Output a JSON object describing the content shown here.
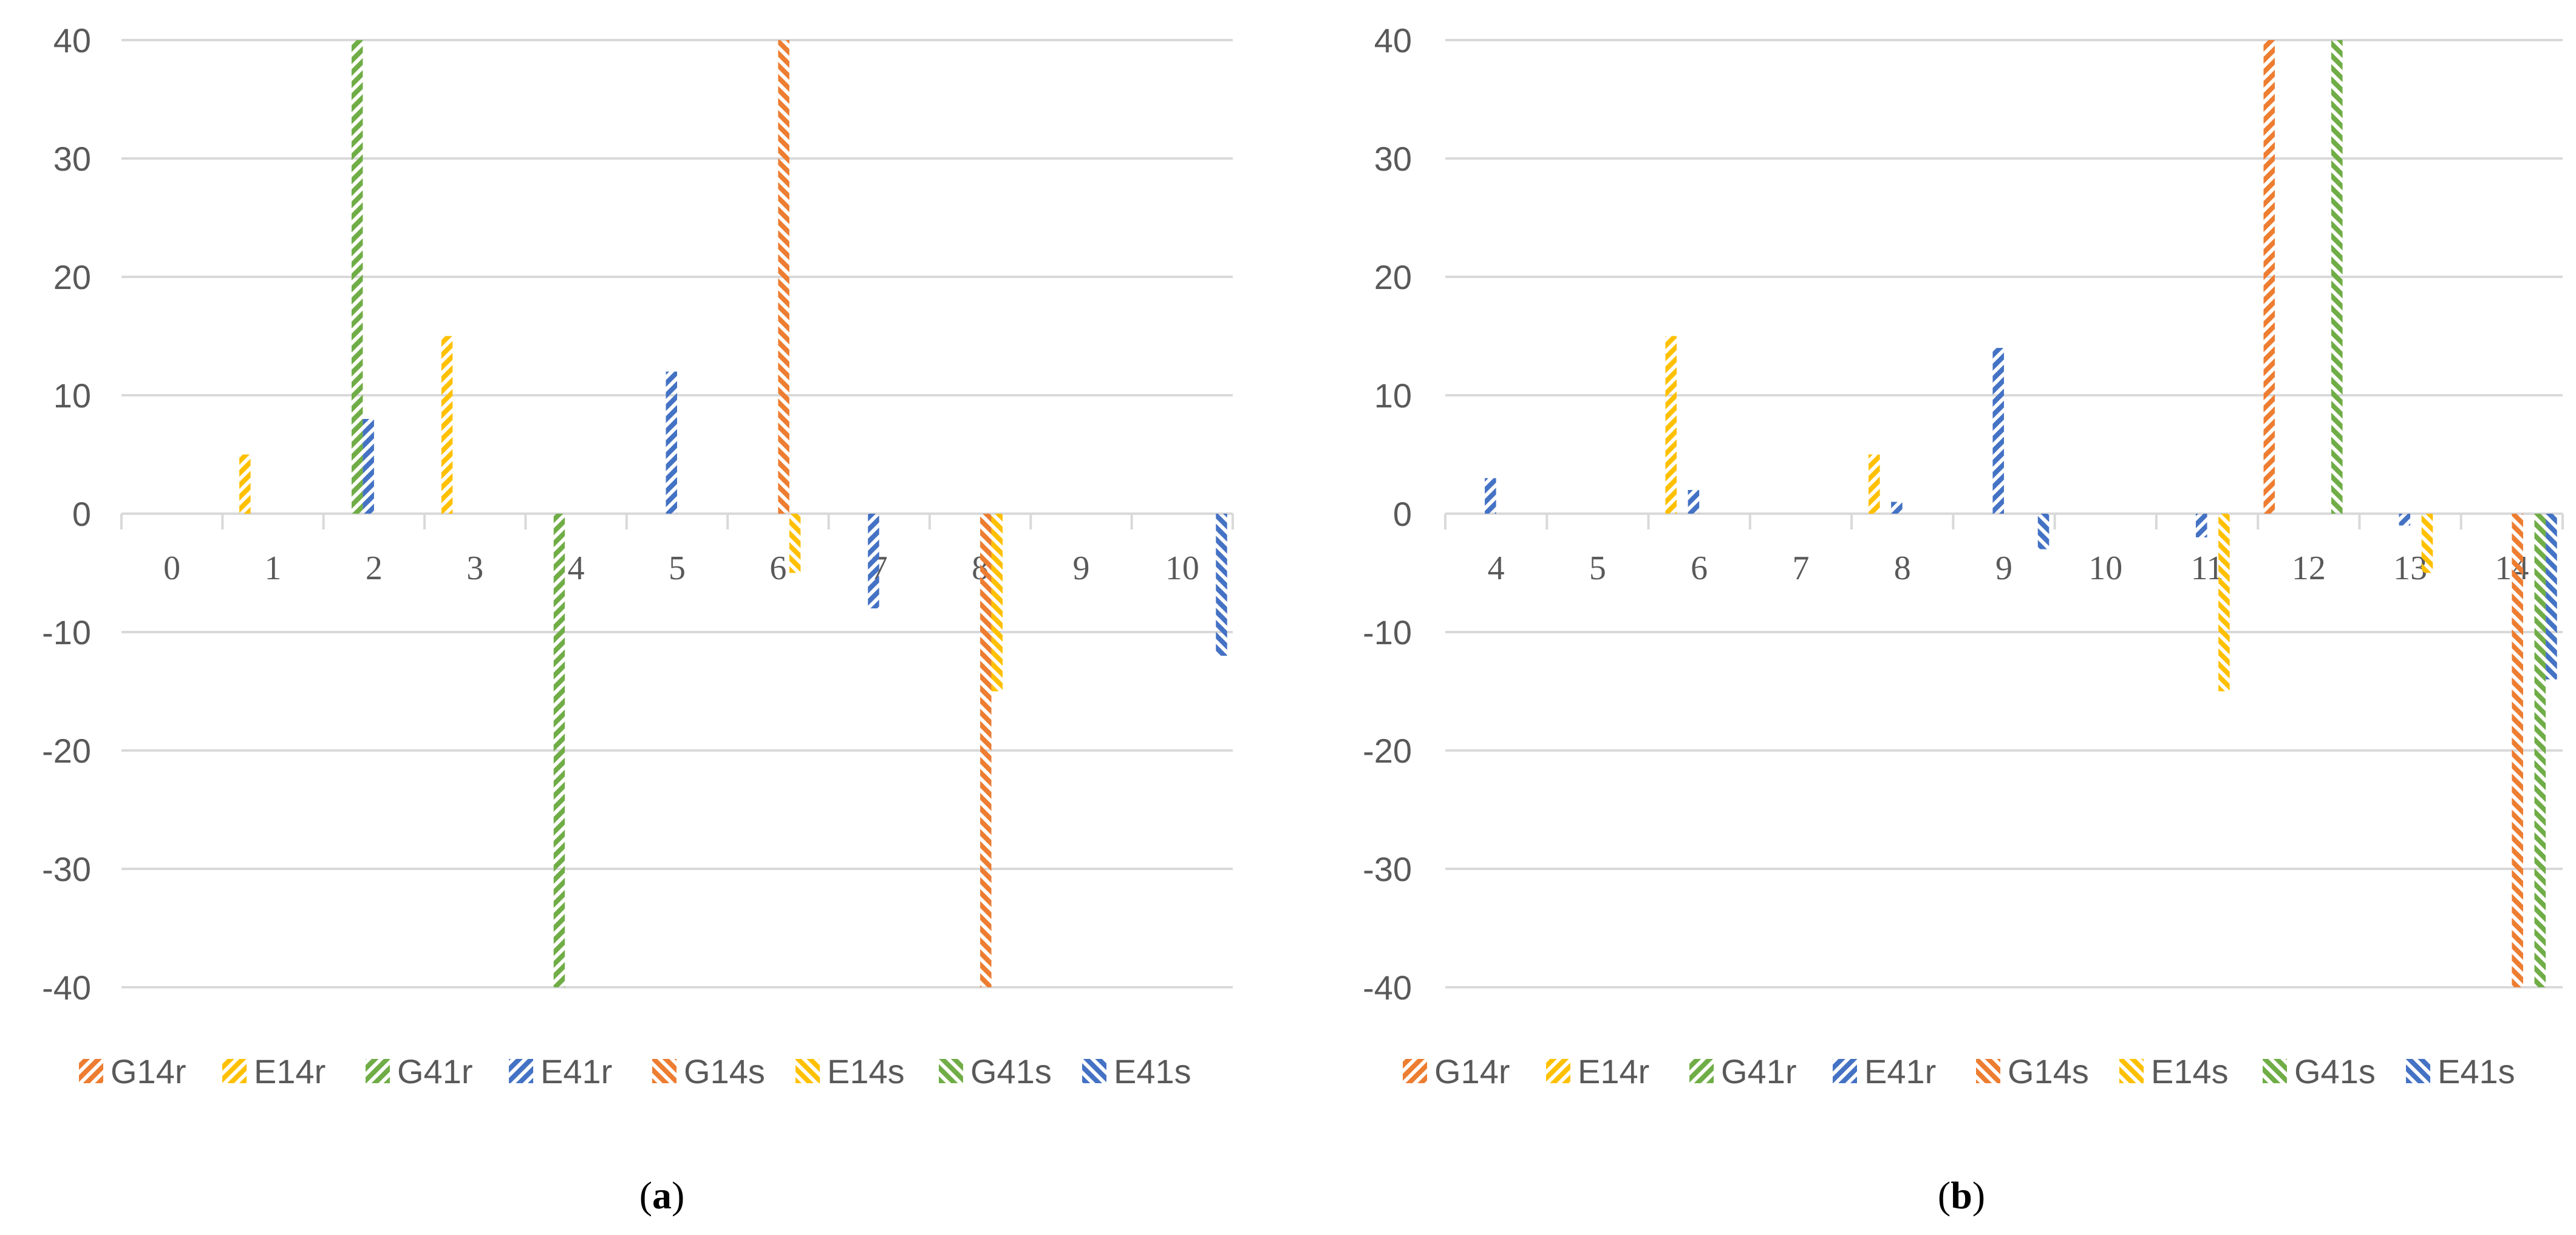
{
  "colors": {
    "G14": "#ED7D31",
    "E14": "#FFC000",
    "G41": "#70AD47",
    "E41": "#4472C4",
    "grid": "#D9D9D9",
    "tick_text": "#595959"
  },
  "chart_data": [
    {
      "type": "bar",
      "panel_label": "a",
      "title": "",
      "xlabel": "",
      "ylabel": "",
      "ylim": [
        -40,
        40
      ],
      "yticks": [
        40,
        30,
        20,
        10,
        0,
        -10,
        -20,
        -30,
        -40
      ],
      "grid": true,
      "legend_position": "bottom",
      "categories": [
        "0",
        "1",
        "2",
        "3",
        "4",
        "5",
        "6",
        "7",
        "8",
        "9",
        "10"
      ],
      "series": [
        {
          "name": "G14r",
          "color_key": "G14",
          "pattern": "right",
          "values": [
            0,
            0,
            0,
            0,
            0,
            0,
            0,
            0,
            0,
            0,
            0
          ]
        },
        {
          "name": "E14r",
          "color_key": "E14",
          "pattern": "right",
          "values": [
            0,
            5,
            0,
            15,
            0,
            0,
            0,
            0,
            0,
            0,
            0
          ]
        },
        {
          "name": "G41r",
          "color_key": "G41",
          "pattern": "right",
          "values": [
            0,
            0,
            40,
            0,
            -40,
            0,
            0,
            0,
            0,
            0,
            0
          ]
        },
        {
          "name": "E41r",
          "color_key": "E41",
          "pattern": "right",
          "values": [
            0,
            0,
            8,
            0,
            0,
            12,
            0,
            -8,
            0,
            0,
            0
          ]
        },
        {
          "name": "G14s",
          "color_key": "G14",
          "pattern": "left",
          "values": [
            0,
            0,
            0,
            0,
            0,
            0,
            40,
            0,
            -40,
            0,
            0
          ]
        },
        {
          "name": "E14s",
          "color_key": "E14",
          "pattern": "left",
          "values": [
            0,
            0,
            0,
            0,
            0,
            0,
            -5,
            0,
            -15,
            0,
            0
          ]
        },
        {
          "name": "G41s",
          "color_key": "G41",
          "pattern": "left",
          "values": [
            0,
            0,
            0,
            0,
            0,
            0,
            0,
            0,
            0,
            0,
            0
          ]
        },
        {
          "name": "E41s",
          "color_key": "E41",
          "pattern": "left",
          "values": [
            0,
            0,
            0,
            0,
            0,
            0,
            0,
            0,
            0,
            0,
            -12
          ]
        }
      ]
    },
    {
      "type": "bar",
      "panel_label": "b",
      "title": "",
      "xlabel": "",
      "ylabel": "",
      "ylim": [
        -40,
        40
      ],
      "yticks": [
        40,
        30,
        20,
        10,
        0,
        -10,
        -20,
        -30,
        -40
      ],
      "grid": true,
      "legend_position": "bottom",
      "categories": [
        "4",
        "5",
        "6",
        "7",
        "8",
        "9",
        "10",
        "11",
        "12",
        "13",
        "14"
      ],
      "series": [
        {
          "name": "G14r",
          "color_key": "G14",
          "pattern": "right",
          "values": [
            0,
            0,
            0,
            0,
            0,
            0,
            0,
            0,
            40,
            0,
            0
          ]
        },
        {
          "name": "E14r",
          "color_key": "E14",
          "pattern": "right",
          "values": [
            0,
            0,
            15,
            0,
            5,
            0,
            0,
            0,
            0,
            0,
            0
          ]
        },
        {
          "name": "G41r",
          "color_key": "G41",
          "pattern": "right",
          "values": [
            0,
            0,
            0,
            0,
            0,
            0,
            0,
            0,
            0,
            0,
            0
          ]
        },
        {
          "name": "E41r",
          "color_key": "E41",
          "pattern": "right",
          "values": [
            3,
            0,
            2,
            0,
            1,
            14,
            0,
            -2,
            0,
            -1,
            0
          ]
        },
        {
          "name": "G14s",
          "color_key": "G14",
          "pattern": "left",
          "values": [
            0,
            0,
            0,
            0,
            0,
            0,
            0,
            0,
            0,
            0,
            -40
          ]
        },
        {
          "name": "E14s",
          "color_key": "E14",
          "pattern": "left",
          "values": [
            0,
            0,
            0,
            0,
            0,
            0,
            0,
            -15,
            0,
            -5,
            0
          ]
        },
        {
          "name": "G41s",
          "color_key": "G41",
          "pattern": "left",
          "values": [
            0,
            0,
            0,
            0,
            0,
            0,
            0,
            0,
            40,
            0,
            -40
          ]
        },
        {
          "name": "E41s",
          "color_key": "E41",
          "pattern": "left",
          "values": [
            0,
            0,
            0,
            0,
            0,
            -3,
            0,
            0,
            0,
            0,
            -14
          ]
        }
      ]
    }
  ]
}
